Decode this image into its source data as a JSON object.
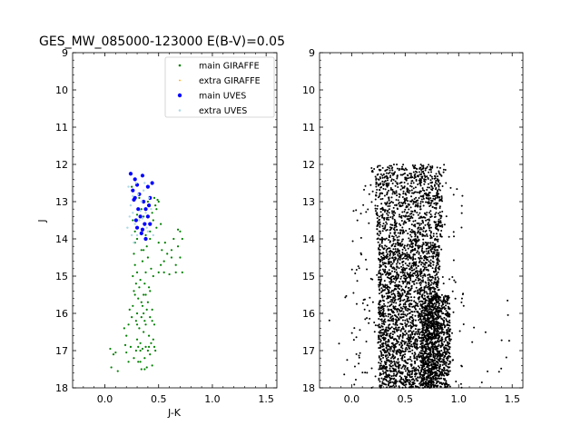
{
  "chart_data": {
    "title": "GES_MW_085000-123000 E(B-V)=0.05",
    "panels": [
      {
        "type": "scatter",
        "xlabel": "J-K",
        "ylabel": "J",
        "xlim": [
          -0.3,
          1.6
        ],
        "ylim": [
          18,
          9
        ],
        "y_inverted": true,
        "xticks": [
          "0.0",
          "0.5",
          "1.0",
          "1.5"
        ],
        "yticks": [
          "9",
          "10",
          "11",
          "12",
          "13",
          "14",
          "15",
          "16",
          "17",
          "18"
        ],
        "legend": {
          "placement": "top-right"
        },
        "series": [
          {
            "name": "main GIRAFFE",
            "color": "#008000",
            "points": [
              [
                0.05,
                16.95
              ],
              [
                0.08,
                17.1
              ],
              [
                0.06,
                17.45
              ],
              [
                0.1,
                17.05
              ],
              [
                0.12,
                17.55
              ],
              [
                0.18,
                16.4
              ],
              [
                0.2,
                16.6
              ],
              [
                0.19,
                16.85
              ],
              [
                0.22,
                16.3
              ],
              [
                0.2,
                17.05
              ],
              [
                0.24,
                16.9
              ],
              [
                0.22,
                17.3
              ],
              [
                0.25,
                16.1
              ],
              [
                0.26,
                15.8
              ],
              [
                0.23,
                15.9
              ],
              [
                0.27,
                15.4
              ],
              [
                0.26,
                15.0
              ],
              [
                0.28,
                14.7
              ],
              [
                0.27,
                14.4
              ],
              [
                0.28,
                14.1
              ],
              [
                0.3,
                14.0
              ],
              [
                0.29,
                15.2
              ],
              [
                0.31,
                15.6
              ],
              [
                0.3,
                16.0
              ],
              [
                0.32,
                16.4
              ],
              [
                0.3,
                16.7
              ],
              [
                0.33,
                17.0
              ],
              [
                0.31,
                17.3
              ],
              [
                0.34,
                17.5
              ],
              [
                0.33,
                15.1
              ],
              [
                0.35,
                14.6
              ],
              [
                0.34,
                14.3
              ],
              [
                0.36,
                15.5
              ],
              [
                0.35,
                15.8
              ],
              [
                0.37,
                16.2
              ],
              [
                0.36,
                16.5
              ],
              [
                0.38,
                16.9
              ],
              [
                0.37,
                17.2
              ],
              [
                0.39,
                17.45
              ],
              [
                0.38,
                14.9
              ],
              [
                0.4,
                14.5
              ],
              [
                0.39,
                14.2
              ],
              [
                0.41,
                15.3
              ],
              [
                0.4,
                15.7
              ],
              [
                0.42,
                16.1
              ],
              [
                0.41,
                16.6
              ],
              [
                0.43,
                16.8
              ],
              [
                0.42,
                17.1
              ],
              [
                0.44,
                17.4
              ],
              [
                0.43,
                14.8
              ],
              [
                0.45,
                15.0
              ],
              [
                0.44,
                15.9
              ],
              [
                0.46,
                16.3
              ],
              [
                0.45,
                16.7
              ],
              [
                0.47,
                17.0
              ],
              [
                0.3,
                14.9
              ],
              [
                0.32,
                15.3
              ],
              [
                0.34,
                15.7
              ],
              [
                0.36,
                16.0
              ],
              [
                0.38,
                16.3
              ],
              [
                0.33,
                16.8
              ],
              [
                0.35,
                16.95
              ],
              [
                0.37,
                15.2
              ],
              [
                0.39,
                15.9
              ],
              [
                0.41,
                16.9
              ],
              [
                0.28,
                15.5
              ],
              [
                0.29,
                16.2
              ],
              [
                0.31,
                16.9
              ],
              [
                0.27,
                17.2
              ],
              [
                0.36,
                14.3
              ],
              [
                0.34,
                13.2
              ],
              [
                0.36,
                13.4
              ],
              [
                0.4,
                13.0
              ],
              [
                0.42,
                13.8
              ],
              [
                0.45,
                13.5
              ],
              [
                0.48,
                13.7
              ],
              [
                0.5,
                14.1
              ],
              [
                0.5,
                13.0
              ],
              [
                0.52,
                13.6
              ],
              [
                0.46,
                12.9
              ],
              [
                0.48,
                13.2
              ],
              [
                0.5,
                14.9
              ],
              [
                0.52,
                14.7
              ],
              [
                0.55,
                14.9
              ],
              [
                0.56,
                14.1
              ],
              [
                0.58,
                14.4
              ],
              [
                0.6,
                14.95
              ],
              [
                0.62,
                14.3
              ],
              [
                0.64,
                14.0
              ],
              [
                0.66,
                14.7
              ],
              [
                0.68,
                14.2
              ],
              [
                0.7,
                13.8
              ],
              [
                0.72,
                14.0
              ],
              [
                0.7,
                14.5
              ],
              [
                0.72,
                14.9
              ],
              [
                0.68,
                13.75
              ],
              [
                0.66,
                14.9
              ],
              [
                0.62,
                14.5
              ],
              [
                0.55,
                14.6
              ],
              [
                0.53,
                14.3
              ],
              [
                0.38,
                13.9
              ],
              [
                0.42,
                14.0
              ],
              [
                0.44,
                13.3
              ],
              [
                0.47,
                13.1
              ],
              [
                0.49,
                12.95
              ],
              [
                0.26,
                13.5
              ],
              [
                0.28,
                13.8
              ],
              [
                0.3,
                13.35
              ],
              [
                0.32,
                12.9
              ],
              [
                0.25,
                12.6
              ],
              [
                0.3,
                16.3
              ],
              [
                0.34,
                16.1
              ],
              [
                0.38,
                15.5
              ],
              [
                0.42,
                15.4
              ],
              [
                0.44,
                16.2
              ],
              [
                0.29,
                17.0
              ],
              [
                0.33,
                17.3
              ],
              [
                0.37,
                17.5
              ],
              [
                0.4,
                17.0
              ],
              [
                0.46,
                16.9
              ]
            ]
          },
          {
            "name": "extra GIRAFFE",
            "color": "#ffa500",
            "points": []
          },
          {
            "name": "main UVES",
            "color": "#0000ff",
            "points": [
              [
                0.24,
                12.25
              ],
              [
                0.26,
                12.7
              ],
              [
                0.28,
                12.4
              ],
              [
                0.28,
                12.9
              ],
              [
                0.3,
                12.55
              ],
              [
                0.32,
                12.8
              ],
              [
                0.35,
                12.3
              ],
              [
                0.36,
                13.0
              ],
              [
                0.38,
                13.2
              ],
              [
                0.4,
                12.6
              ],
              [
                0.42,
                12.9
              ],
              [
                0.44,
                12.5
              ],
              [
                0.33,
                13.4
              ],
              [
                0.37,
                13.6
              ],
              [
                0.4,
                13.4
              ],
              [
                0.3,
                13.7
              ],
              [
                0.34,
                13.85
              ],
              [
                0.38,
                14.0
              ],
              [
                0.42,
                13.6
              ],
              [
                0.27,
                12.95
              ],
              [
                0.31,
                13.2
              ],
              [
                0.29,
                13.5
              ],
              [
                0.35,
                13.75
              ],
              [
                0.41,
                13.1
              ]
            ]
          },
          {
            "name": "extra UVES",
            "color": "#add8e6",
            "points": [
              [
                0.22,
                12.6
              ],
              [
                0.24,
                13.1
              ],
              [
                0.26,
                13.3
              ],
              [
                0.28,
                13.6
              ],
              [
                0.3,
                13.9
              ],
              [
                0.32,
                13.5
              ],
              [
                0.34,
                13.0
              ],
              [
                0.36,
                12.7
              ],
              [
                0.38,
                13.3
              ],
              [
                0.4,
                13.8
              ],
              [
                0.25,
                13.9
              ],
              [
                0.27,
                14.1
              ],
              [
                0.29,
                12.5
              ],
              [
                0.31,
                12.8
              ],
              [
                0.33,
                13.25
              ],
              [
                0.35,
                13.45
              ],
              [
                0.37,
                12.5
              ],
              [
                0.39,
                13.7
              ],
              [
                0.43,
                13.2
              ],
              [
                0.45,
                13.9
              ],
              [
                0.23,
                13.4
              ],
              [
                0.21,
                13.7
              ],
              [
                0.26,
                12.85
              ],
              [
                0.41,
                12.9
              ]
            ]
          }
        ]
      },
      {
        "type": "scatter",
        "xlabel": "",
        "ylabel": "",
        "xlim": [
          -0.3,
          1.6
        ],
        "ylim": [
          18,
          9
        ],
        "y_inverted": true,
        "xticks": [
          "0.0",
          "0.5",
          "1.0",
          "1.5"
        ],
        "yticks": [
          "9",
          "10",
          "11",
          "12",
          "13",
          "14",
          "15",
          "16",
          "17",
          "18"
        ],
        "series": [
          {
            "color": "#000000",
            "density_regions": [
              {
                "xrange": [
                  0.18,
                  0.88
                ],
                "yrange": [
                  12.0,
                  12.3
                ],
                "count": 120
              },
              {
                "xrange": [
                  0.22,
                  0.85
                ],
                "yrange": [
                  12.3,
                  14.0
                ],
                "count": 700
              },
              {
                "xrange": [
                  0.25,
                  0.82
                ],
                "yrange": [
                  14.0,
                  18.0
                ],
                "count": 2200
              },
              {
                "xrange": [
                  0.65,
                  0.92
                ],
                "yrange": [
                  15.5,
                  18.0
                ],
                "count": 900
              },
              {
                "xrange": [
                  0.0,
                  1.05
                ],
                "yrange": [
                  12.5,
                  18.0
                ],
                "count": 260
              },
              {
                "xrange": [
                  -0.25,
                  1.5
                ],
                "yrange": [
                  15.5,
                  18.0
                ],
                "count": 40
              }
            ]
          }
        ]
      }
    ]
  },
  "legend": [
    {
      "label": "main GIRAFFE",
      "color": "#008000",
      "marker": "small"
    },
    {
      "label": "extra GIRAFFE",
      "color": "#ffa500",
      "marker": "tiny"
    },
    {
      "label": "main UVES",
      "color": "#0000ff",
      "marker": "large"
    },
    {
      "label": "extra UVES",
      "color": "#add8e6",
      "marker": "small"
    }
  ]
}
